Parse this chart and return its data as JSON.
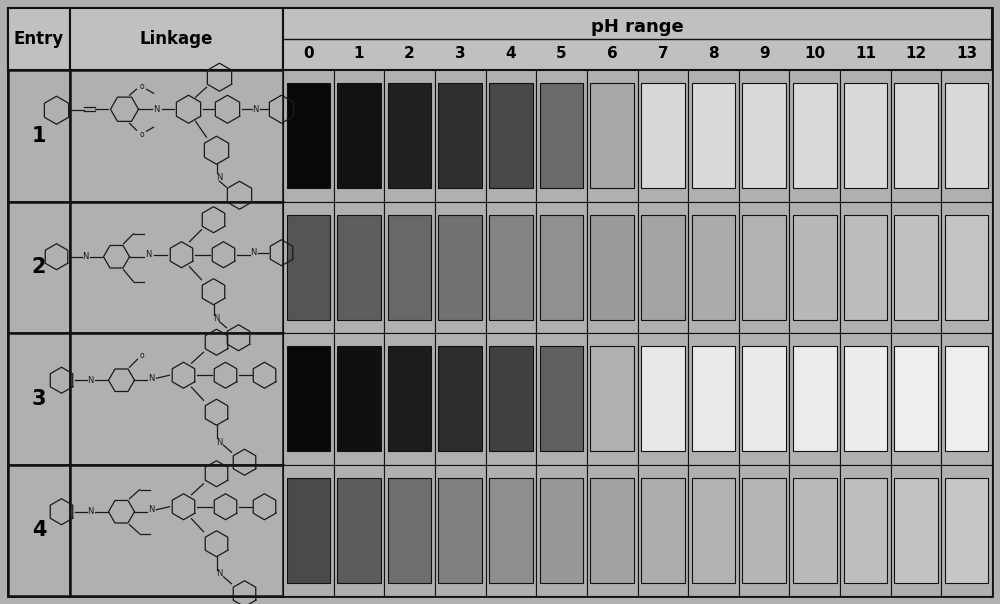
{
  "title": "pH range",
  "ph_labels": [
    "0",
    "1",
    "2",
    "3",
    "4",
    "5",
    "6",
    "7",
    "8",
    "9",
    "10",
    "11",
    "12",
    "13"
  ],
  "entry_labels": [
    "1",
    "2",
    "3",
    "4"
  ],
  "bg_color": "#b0b0b0",
  "cell_bg": "#b0b0b0",
  "header_bg": "#c0c0c0",
  "border_color": "#111111",
  "row_colors": [
    [
      "#080808",
      "#111111",
      "#202020",
      "#303030",
      "#484848",
      "#6a6a6a",
      "#a8a8a8",
      "#d8d8d8",
      "#dadada",
      "#dadada",
      "#dadada",
      "#dadada",
      "#dadada",
      "#dadada"
    ],
    [
      "#555555",
      "#5e5e5e",
      "#686868",
      "#727272",
      "#848484",
      "#909090",
      "#9a9a9a",
      "#a4a4a4",
      "#ababab",
      "#b2b2b2",
      "#b8b8b8",
      "#bcbcbc",
      "#c0c0c0",
      "#c4c4c4"
    ],
    [
      "#080808",
      "#101010",
      "#1c1c1c",
      "#2d2d2d",
      "#404040",
      "#606060",
      "#b0b0b0",
      "#e8e8e8",
      "#eaeaea",
      "#ebebeb",
      "#ececec",
      "#ededee",
      "#eeeeed",
      "#eeeeee"
    ],
    [
      "#4a4a4a",
      "#5c5c5c",
      "#6e6e6e",
      "#808080",
      "#8e8e8e",
      "#989898",
      "#a3a3a3",
      "#adadad",
      "#b2b2b2",
      "#b6b6b6",
      "#bababa",
      "#bebebe",
      "#c2c2c2",
      "#c6c6c6"
    ]
  ],
  "title_fontsize": 13,
  "label_fontsize": 12,
  "ph_fontsize": 11,
  "entry_fontsize": 15
}
